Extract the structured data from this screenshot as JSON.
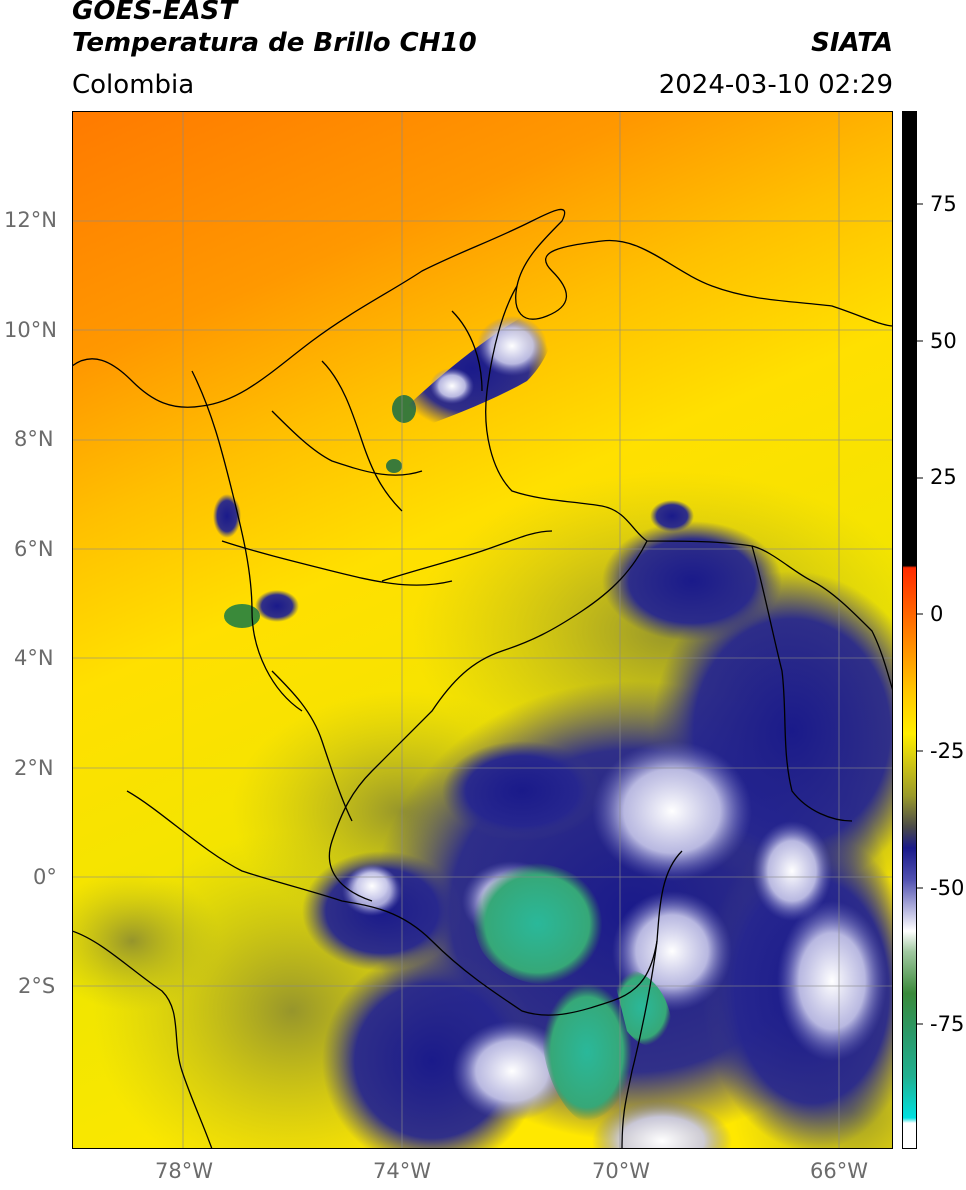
{
  "header": {
    "title_line1": "GOES-EAST",
    "title_line2": "Temperatura de Brillo CH10",
    "organization": "SIATA",
    "region": "Colombia",
    "datetime": "2024-03-10 02:29"
  },
  "map": {
    "lat_ticks": [
      "12°N",
      "10°N",
      "8°N",
      "6°N",
      "4°N",
      "2°N",
      "0°",
      "2°S"
    ],
    "lon_ticks": [
      "78°W",
      "74°W",
      "70°W",
      "66°W"
    ]
  },
  "colorbar": {
    "labels": [
      "75",
      "50",
      "25",
      "0",
      "-25",
      "-50",
      "-75"
    ],
    "colors": {
      "black": "#000000",
      "red": "#ff2200",
      "orange": "#ff9a00",
      "yellow": "#ffee00",
      "olive": "#9a9a2a",
      "gray": "#4a4a4a",
      "navy": "#1a1a8a",
      "lavender": "#b8b8e0",
      "white": "#ffffff",
      "green": "#3a8a3a",
      "teal": "#20b090",
      "cyan": "#00e0e0"
    }
  }
}
